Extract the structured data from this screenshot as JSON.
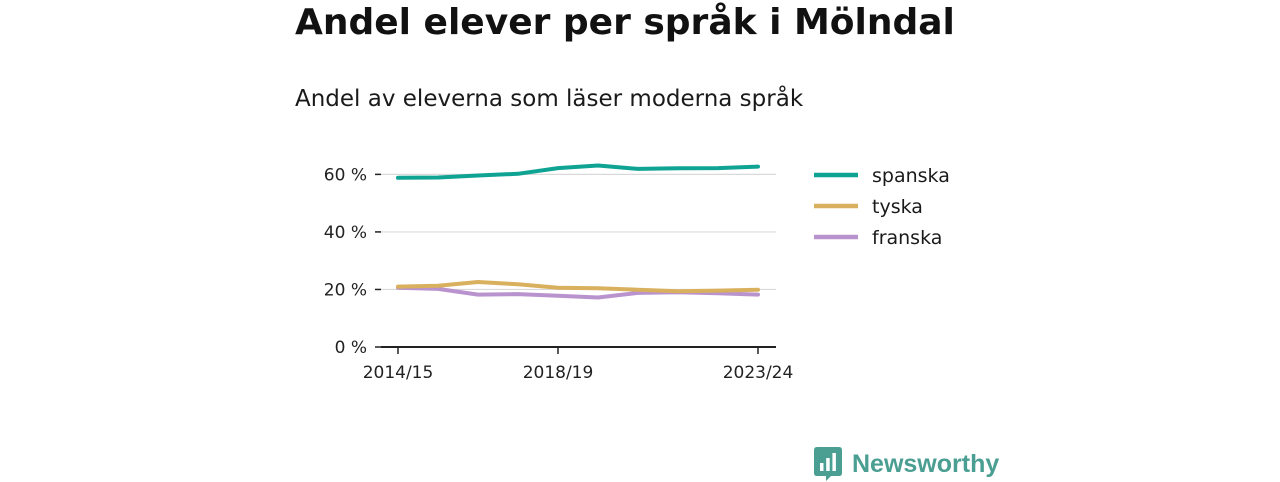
{
  "title": "Andel elever per språk i Mölndal",
  "subtitle": "Andel av eleverna som läser moderna språk",
  "brand": {
    "name": "Newsworthy",
    "icon": "newsworthy-logo-icon",
    "color": "#4a9e92"
  },
  "chart_data": {
    "type": "line",
    "x": [
      "2014/15",
      "2015/16",
      "2016/17",
      "2017/18",
      "2018/19",
      "2019/20",
      "2020/21",
      "2021/22",
      "2022/23",
      "2023/24"
    ],
    "x_tick_labels": [
      "2014/15",
      "2018/19",
      "2023/24"
    ],
    "y_ticks": [
      0,
      20,
      40,
      60
    ],
    "y_tick_labels": [
      "0 %",
      "20 %",
      "40 %",
      "60 %"
    ],
    "ylim": [
      0,
      65
    ],
    "unit": "%",
    "grid": true,
    "legend_position": "right",
    "series": [
      {
        "name": "spanska",
        "color": "#0fa394",
        "values": [
          58.8,
          58.9,
          59.6,
          60.2,
          62.2,
          63.1,
          61.9,
          62.1,
          62.2,
          62.7
        ]
      },
      {
        "name": "tyska",
        "color": "#d9b05e",
        "values": [
          21.0,
          21.3,
          22.6,
          21.8,
          20.6,
          20.4,
          19.9,
          19.4,
          19.6,
          19.9
        ]
      },
      {
        "name": "franska",
        "color": "#b993cd",
        "values": [
          20.6,
          20.2,
          18.2,
          18.4,
          17.8,
          17.2,
          18.8,
          19.0,
          18.7,
          18.2
        ]
      }
    ]
  }
}
